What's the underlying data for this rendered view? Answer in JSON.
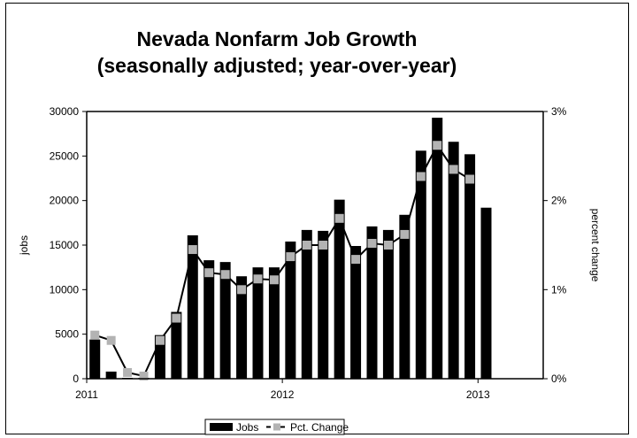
{
  "chart_data": {
    "type": "bar",
    "title": [
      "Nevada Nonfarm Job Growth",
      "(seasonally adjusted; year-over-year)"
    ],
    "ylabel": "jobs",
    "y2label": "percent change",
    "ylim": [
      0,
      30000
    ],
    "y2lim": [
      0,
      3
    ],
    "yticks": [
      "0",
      "5000",
      "10000",
      "15000",
      "20000",
      "25000",
      "30000"
    ],
    "y2ticks": [
      "0%",
      "1%",
      "2%",
      "3%"
    ],
    "xticks": [
      {
        "label": "2011",
        "index": 0
      },
      {
        "label": "2012",
        "index": 12
      },
      {
        "label": "2013",
        "index": 24
      }
    ],
    "months": [
      "2011-01",
      "2011-02",
      "2011-03",
      "2011-04",
      "2011-05",
      "2011-06",
      "2011-07",
      "2011-08",
      "2011-09",
      "2011-10",
      "2011-11",
      "2011-12",
      "2012-01",
      "2012-02",
      "2012-03",
      "2012-04",
      "2012-05",
      "2012-06",
      "2012-07",
      "2012-08",
      "2012-09",
      "2012-10",
      "2012-11",
      "2012-12",
      "2013-01",
      "2013-02",
      "2013-03",
      "2013-04"
    ],
    "series": [
      {
        "name": "Jobs",
        "kind": "bar",
        "axis": "left",
        "color": "#000000",
        "values": [
          4400,
          800,
          100,
          100,
          4900,
          7500,
          16100,
          13300,
          13100,
          11500,
          12500,
          12500,
          15400,
          16700,
          16600,
          20100,
          14900,
          17100,
          16700,
          18400,
          25600,
          29300,
          26600,
          25200,
          19200
        ]
      },
      {
        "name": "Pct. Change",
        "kind": "line",
        "axis": "right",
        "color": "#000000",
        "marker_color": "#b3b3b3",
        "values": [
          0.49,
          0.43,
          0.07,
          0.03,
          0.43,
          0.68,
          1.45,
          1.19,
          1.17,
          1.0,
          1.12,
          1.11,
          1.37,
          1.5,
          1.5,
          1.8,
          1.34,
          1.52,
          1.5,
          1.62,
          2.27,
          2.62,
          2.35,
          2.24
        ]
      }
    ],
    "legend_position": "bottom",
    "grid": false
  }
}
